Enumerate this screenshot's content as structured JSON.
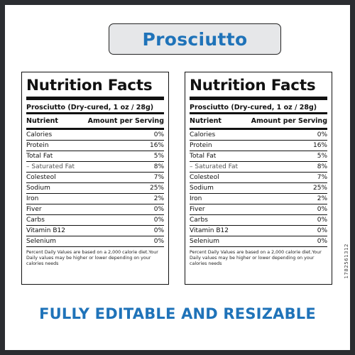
{
  "title": "Prosciutto",
  "labels": [
    {
      "heading": "Nutrition Facts",
      "serving": "Prosciutto (Dry-cured, 1 oz / 28g)",
      "col_nutrient": "Nutrient",
      "col_amount": "Amount per Serving",
      "rows": [
        {
          "name": "Calories",
          "value": "0%"
        },
        {
          "name": "Protein",
          "value": "16%"
        },
        {
          "name": "Total Fat",
          "value": "5%"
        },
        {
          "name": "– Saturated Fat",
          "value": "8%"
        },
        {
          "name": "Colesteol",
          "value": "7%"
        },
        {
          "name": "Sodium",
          "value": "25%"
        },
        {
          "name": "Iron",
          "value": "2%"
        },
        {
          "name": "Fiver",
          "value": "0%"
        },
        {
          "name": "Carbs",
          "value": "0%"
        },
        {
          "name": "Vitamin B12",
          "value": "0%"
        },
        {
          "name": "Selenium",
          "value": "0%"
        }
      ],
      "footnote": "Percent Daily Values are based on a 2,000 calorie diet.Your Daily values may be higher or lower depending on your calories needs"
    },
    {
      "heading": "Nutrition Facts",
      "serving": "Prosciutto (Dry-cured, 1 oz / 28g)",
      "col_nutrient": "Nutrient",
      "col_amount": "Amount per Serving",
      "rows": [
        {
          "name": "Calories",
          "value": "0%"
        },
        {
          "name": "Protein",
          "value": "16%"
        },
        {
          "name": "Total Fat",
          "value": "5%"
        },
        {
          "name": "– Saturated Fat",
          "value": "8%"
        },
        {
          "name": "Colesteol",
          "value": "7%"
        },
        {
          "name": "Sodium",
          "value": "25%"
        },
        {
          "name": "Iron",
          "value": "2%"
        },
        {
          "name": "Fiver",
          "value": "0%"
        },
        {
          "name": "Carbs",
          "value": "0%"
        },
        {
          "name": "Vitamin B12",
          "value": "0%"
        },
        {
          "name": "Selenium",
          "value": "0%"
        }
      ],
      "footnote": "Percent Daily Values are based on a 2,000 calorie diet.Your Daily values may be higher or lower depending on your calories needs"
    }
  ],
  "bottom_text": "FULLY EDITABLE AND RESIZABLE",
  "watermark": "1782561312",
  "colors": {
    "accent": "#1f73b9",
    "frame": "#2b2d31"
  }
}
